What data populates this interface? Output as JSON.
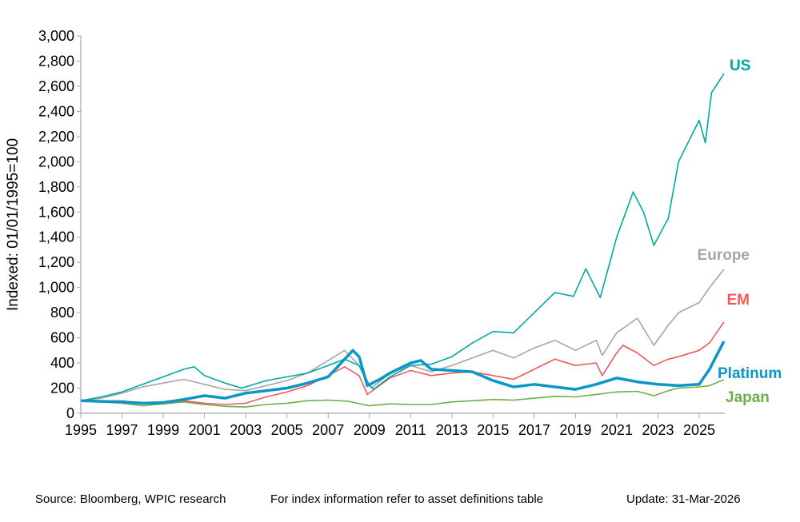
{
  "chart_data": {
    "type": "line",
    "title": "",
    "xlabel": "",
    "ylabel": "Indexed: 01/01/1995=100",
    "xlim": [
      1995,
      2026.25
    ],
    "ylim": [
      0,
      3000
    ],
    "yticks": [
      0,
      200,
      400,
      600,
      800,
      1000,
      1200,
      1400,
      1600,
      1800,
      2000,
      2200,
      2400,
      2600,
      2800,
      3000
    ],
    "ytick_labels": [
      "0",
      "200",
      "400",
      "600",
      "800",
      "1,000",
      "1,200",
      "1,400",
      "1,600",
      "1,800",
      "2,000",
      "2,200",
      "2,400",
      "2,600",
      "2,800",
      "3,000"
    ],
    "xticks": [
      1995,
      1997,
      1999,
      2001,
      2003,
      2005,
      2007,
      2009,
      2011,
      2013,
      2015,
      2017,
      2019,
      2021,
      2023,
      2025
    ],
    "xtick_labels": [
      "1995",
      "1997",
      "1999",
      "2001",
      "2003",
      "2005",
      "2007",
      "2009",
      "2011",
      "2013",
      "2015",
      "2017",
      "2019",
      "2021",
      "2023",
      "2025"
    ],
    "grid": false,
    "legend": "direct labels at right end of lines",
    "series": [
      {
        "name": "US",
        "color": "#00a99d",
        "width": 1.6,
        "x": [
          1995,
          1996,
          1997,
          1998,
          1999,
          2000,
          2000.5,
          2001,
          2002,
          2002.8,
          2004,
          2005,
          2006,
          2007,
          2007.8,
          2008.5,
          2008.9,
          2009.2,
          2010,
          2011,
          2012,
          2013,
          2014,
          2015,
          2016,
          2017,
          2018,
          2018.9,
          2019.5,
          2020.2,
          2021,
          2021.8,
          2022.3,
          2022.8,
          2023.5,
          2024,
          2025,
          2025.3,
          2025.6,
          2026.2
        ],
        "y": [
          100,
          130,
          170,
          230,
          290,
          350,
          370,
          300,
          240,
          200,
          260,
          290,
          320,
          380,
          430,
          380,
          240,
          190,
          290,
          380,
          390,
          450,
          560,
          650,
          640,
          800,
          960,
          930,
          1150,
          920,
          1400,
          1760,
          1600,
          1335,
          1550,
          2000,
          2330,
          2150,
          2550,
          2700
        ]
      },
      {
        "name": "Europe",
        "color": "#a6a6a6",
        "width": 1.6,
        "x": [
          1995,
          1996,
          1997,
          1998,
          1999,
          2000,
          2001,
          2002,
          2003,
          2004,
          2005,
          2006,
          2007,
          2007.8,
          2008.5,
          2009.1,
          2010,
          2011,
          2012,
          2013,
          2014,
          2015,
          2016,
          2017,
          2018,
          2019,
          2020,
          2020.3,
          2021,
          2022,
          2022.8,
          2023.5,
          2024,
          2025,
          2025.5,
          2026.2
        ],
        "y": [
          100,
          120,
          160,
          210,
          240,
          270,
          230,
          190,
          180,
          220,
          260,
          320,
          420,
          500,
          380,
          200,
          320,
          380,
          330,
          380,
          440,
          500,
          440,
          520,
          580,
          500,
          580,
          460,
          640,
          756,
          540,
          700,
          800,
          880,
          1000,
          1144
        ]
      },
      {
        "name": "EM",
        "color": "#f05a5a",
        "width": 1.6,
        "x": [
          1995,
          1996,
          1997,
          1998,
          1999,
          2000,
          2001,
          2002,
          2003,
          2004,
          2005,
          2006,
          2007,
          2007.8,
          2008.5,
          2008.9,
          2010,
          2011,
          2012,
          2013,
          2014,
          2015,
          2016,
          2017,
          2018,
          2019,
          2020,
          2020.3,
          2021,
          2021.3,
          2022,
          2022.8,
          2023.5,
          2024,
          2025,
          2025.5,
          2026.2
        ],
        "y": [
          100,
          95,
          100,
          75,
          80,
          100,
          80,
          70,
          80,
          130,
          170,
          220,
          300,
          370,
          300,
          150,
          280,
          340,
          300,
          320,
          330,
          300,
          270,
          350,
          430,
          380,
          400,
          300,
          480,
          540,
          480,
          380,
          430,
          450,
          500,
          560,
          725
        ]
      },
      {
        "name": "Platinum",
        "color": "#0a96c8",
        "width": 3.5,
        "x": [
          1995,
          1996,
          1997,
          1998,
          1999,
          2000,
          2001,
          2002,
          2003,
          2004,
          2005,
          2006,
          2007,
          2008.2,
          2008.5,
          2008.9,
          2009.5,
          2010,
          2011,
          2011.5,
          2012,
          2013,
          2014,
          2015,
          2016,
          2017,
          2018,
          2019,
          2020,
          2021,
          2022,
          2023,
          2024,
          2025,
          2025.5,
          2026.2
        ],
        "y": [
          100,
          95,
          90,
          80,
          85,
          110,
          140,
          120,
          160,
          180,
          200,
          240,
          290,
          500,
          450,
          220,
          270,
          320,
          400,
          420,
          350,
          340,
          330,
          260,
          210,
          230,
          210,
          190,
          230,
          280,
          250,
          230,
          220,
          230,
          350,
          572
        ]
      },
      {
        "name": "Japan",
        "color": "#70ad47",
        "width": 1.6,
        "x": [
          1995,
          1996,
          1997,
          1998,
          1999,
          2000,
          2001,
          2002,
          2003,
          2004,
          2005,
          2006,
          2007,
          2008,
          2009,
          2010,
          2011,
          2012,
          2013,
          2014,
          2015,
          2016,
          2017,
          2018,
          2019,
          2020,
          2021,
          2022,
          2022.8,
          2023.5,
          2024,
          2025,
          2025.5,
          2026.2
        ],
        "y": [
          100,
          90,
          80,
          60,
          75,
          90,
          70,
          55,
          50,
          70,
          80,
          100,
          105,
          95,
          60,
          75,
          70,
          70,
          90,
          100,
          110,
          105,
          120,
          135,
          130,
          150,
          170,
          175,
          140,
          180,
          200,
          210,
          220,
          267
        ]
      }
    ]
  },
  "footer": {
    "source": "Source: Bloomberg, WPIC research",
    "note": "For index information refer to asset definitions table",
    "update": "Update: 31-Mar-2026"
  }
}
